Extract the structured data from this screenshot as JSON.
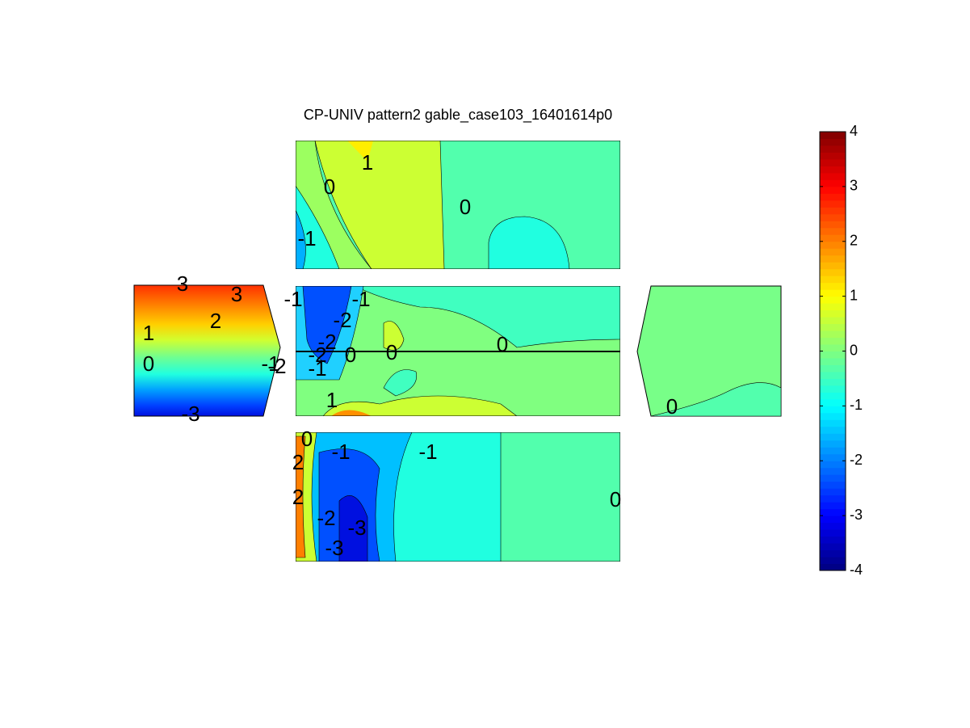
{
  "chart_data": {
    "type": "contour",
    "title": "CP-UNIV pattern2 gable_case103_16401614p0",
    "clim": [
      -4,
      4
    ],
    "cticks": [
      -4,
      -3,
      -2,
      -1,
      0,
      1,
      2,
      3,
      4
    ],
    "panels": [
      {
        "labels": [
          1,
          0,
          0,
          -1
        ]
      },
      {
        "labels": [
          -1,
          -1,
          -2,
          -2,
          -2,
          -1,
          0,
          0,
          0,
          1
        ]
      },
      {
        "labels": [
          3,
          3,
          2,
          1,
          0,
          -1,
          -2,
          -3
        ]
      },
      {
        "labels": [
          0
        ]
      },
      {
        "labels": [
          0,
          -1,
          -1,
          2,
          2,
          -2,
          -3,
          -3,
          0
        ]
      }
    ]
  }
}
